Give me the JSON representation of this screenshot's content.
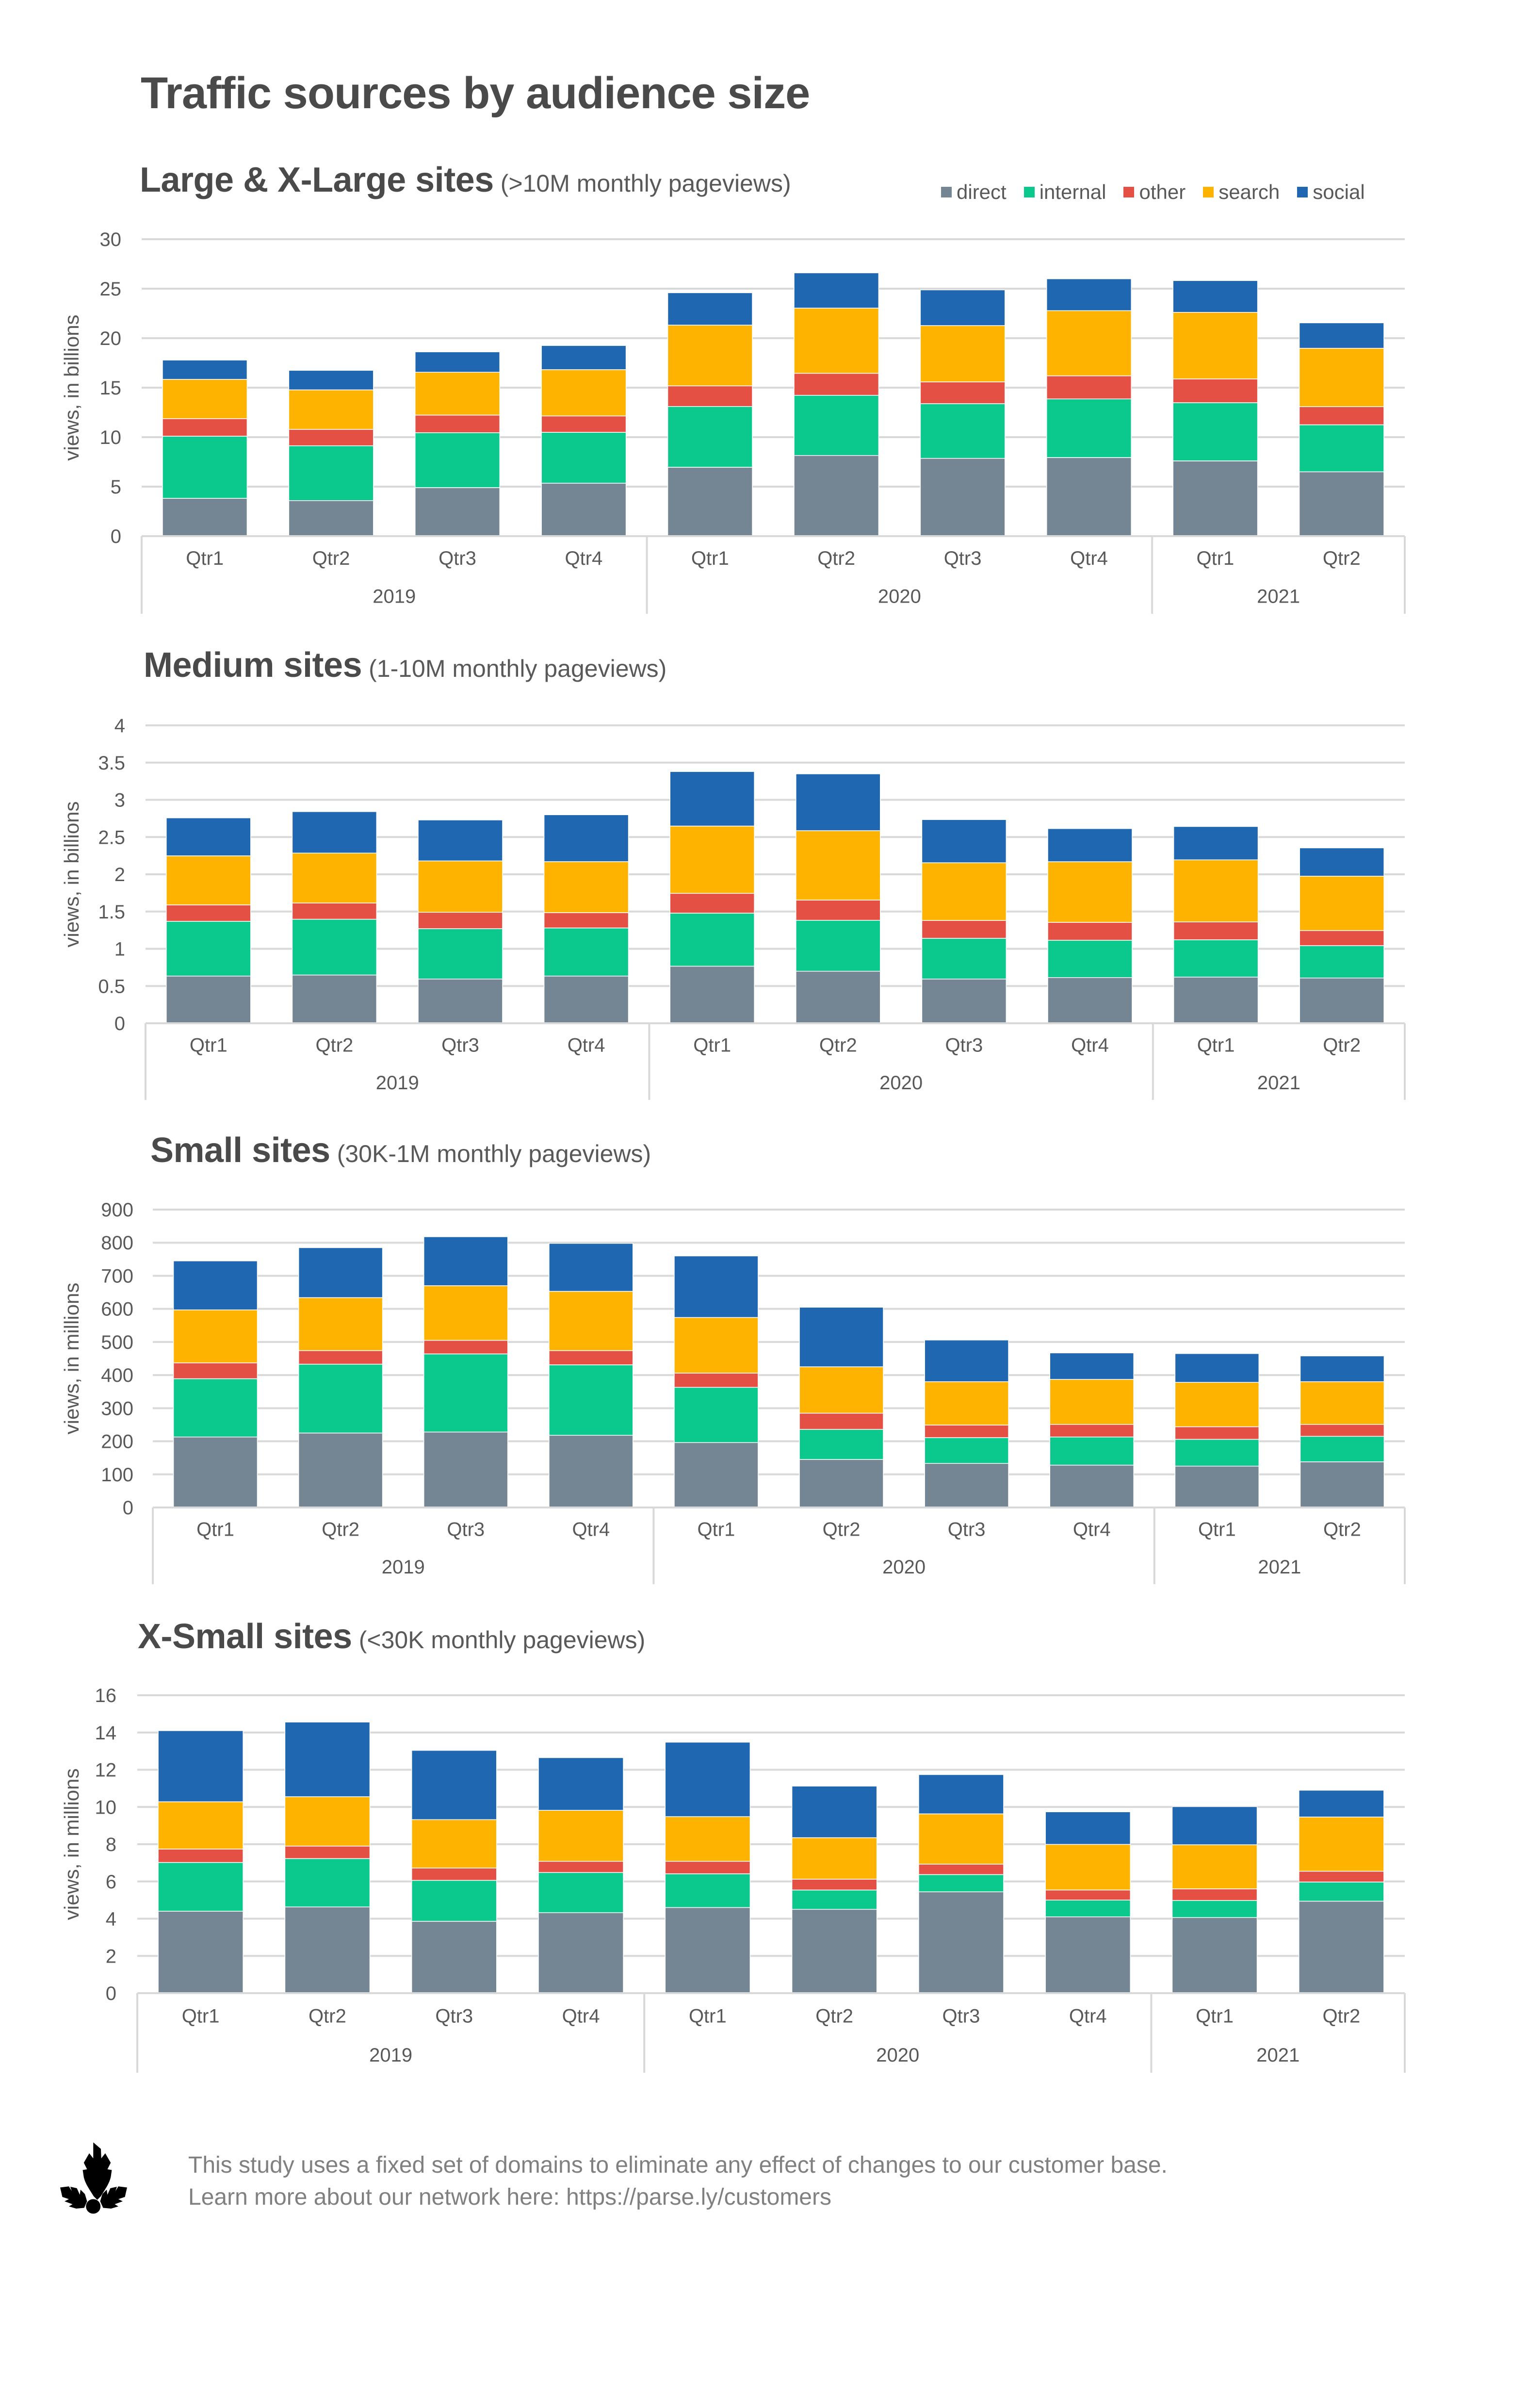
{
  "page": {
    "title": "Traffic sources by audience size"
  },
  "legend": [
    {
      "name": "direct",
      "color": "#748694"
    },
    {
      "name": "internal",
      "color": "#0bc88c"
    },
    {
      "name": "other",
      "color": "#e55045"
    },
    {
      "name": "search",
      "color": "#fdb300"
    },
    {
      "name": "social",
      "color": "#1f67b1"
    }
  ],
  "footer": {
    "logo_icon": "parsely-leaf-icon",
    "line1": "This study uses a fixed set of domains to eliminate any effect of changes to our customer base.",
    "line2": "Learn more about our network here: https://parse.ly/customers"
  },
  "chart_data": [
    {
      "type": "bar",
      "stacked": true,
      "title": "Large & X-Large sites",
      "subtitle": "(>10M monthly pageviews)",
      "ylabel": "views, in billions",
      "xlabel": "",
      "ylim": [
        0,
        30
      ],
      "yticks": [
        0,
        5,
        10,
        15,
        20,
        25,
        30
      ],
      "grid": true,
      "legend": "top-right",
      "categories": [
        "Qtr1",
        "Qtr2",
        "Qtr3",
        "Qtr4",
        "Qtr1",
        "Qtr2",
        "Qtr3",
        "Qtr4",
        "Qtr1",
        "Qtr2"
      ],
      "groups": [
        {
          "label": "2019",
          "count": 4
        },
        {
          "label": "2020",
          "count": 4
        },
        {
          "label": "2021",
          "count": 2
        }
      ],
      "series": [
        {
          "name": "direct",
          "values": [
            3.82,
            3.59,
            4.9,
            5.35,
            6.96,
            8.15,
            7.86,
            7.94,
            7.6,
            6.5
          ]
        },
        {
          "name": "internal",
          "values": [
            6.28,
            5.54,
            5.55,
            5.14,
            6.14,
            6.08,
            5.52,
            5.92,
            5.88,
            4.75
          ]
        },
        {
          "name": "other",
          "values": [
            1.77,
            1.66,
            1.78,
            1.65,
            2.08,
            2.22,
            2.2,
            2.34,
            2.4,
            1.83
          ]
        },
        {
          "name": "search",
          "values": [
            3.97,
            3.99,
            4.33,
            4.68,
            6.14,
            6.59,
            5.69,
            6.58,
            6.73,
            5.9
          ]
        },
        {
          "name": "social",
          "values": [
            1.95,
            1.97,
            2.06,
            2.44,
            3.27,
            3.56,
            3.61,
            3.22,
            3.21,
            2.57
          ]
        }
      ]
    },
    {
      "type": "bar",
      "stacked": true,
      "title": "Medium sites",
      "subtitle": "(1-10M monthly pageviews)",
      "ylabel": "views, in billions",
      "xlabel": "",
      "ylim": [
        0,
        4
      ],
      "yticks": [
        0,
        0.5,
        1,
        1.5,
        2,
        2.5,
        3,
        3.5,
        4
      ],
      "grid": true,
      "categories": [
        "Qtr1",
        "Qtr2",
        "Qtr3",
        "Qtr4",
        "Qtr1",
        "Qtr2",
        "Qtr3",
        "Qtr4",
        "Qtr1",
        "Qtr2"
      ],
      "groups": [
        {
          "label": "2019",
          "count": 4
        },
        {
          "label": "2020",
          "count": 4
        },
        {
          "label": "2021",
          "count": 2
        }
      ],
      "series": [
        {
          "name": "direct",
          "values": [
            0.634,
            0.648,
            0.594,
            0.634,
            0.766,
            0.699,
            0.594,
            0.614,
            0.62,
            0.608
          ]
        },
        {
          "name": "internal",
          "values": [
            0.735,
            0.749,
            0.676,
            0.646,
            0.713,
            0.684,
            0.547,
            0.501,
            0.501,
            0.434
          ]
        },
        {
          "name": "other",
          "values": [
            0.22,
            0.217,
            0.22,
            0.205,
            0.265,
            0.271,
            0.239,
            0.24,
            0.24,
            0.203
          ]
        },
        {
          "name": "search",
          "values": [
            0.659,
            0.671,
            0.69,
            0.685,
            0.904,
            0.932,
            0.775,
            0.814,
            0.833,
            0.73
          ]
        },
        {
          "name": "social",
          "values": [
            0.51,
            0.557,
            0.55,
            0.63,
            0.732,
            0.763,
            0.58,
            0.445,
            0.448,
            0.38
          ]
        }
      ]
    },
    {
      "type": "bar",
      "stacked": true,
      "title": "Small sites",
      "subtitle": "(30K-1M monthly pageviews)",
      "ylabel": "views, in millions",
      "xlabel": "",
      "ylim": [
        0,
        900
      ],
      "yticks": [
        0,
        100,
        200,
        300,
        400,
        500,
        600,
        700,
        800,
        900
      ],
      "grid": true,
      "categories": [
        "Qtr1",
        "Qtr2",
        "Qtr3",
        "Qtr4",
        "Qtr1",
        "Qtr2",
        "Qtr3",
        "Qtr4",
        "Qtr1",
        "Qtr2"
      ],
      "groups": [
        {
          "label": "2019",
          "count": 4
        },
        {
          "label": "2020",
          "count": 4
        },
        {
          "label": "2021",
          "count": 2
        }
      ],
      "series": [
        {
          "name": "direct",
          "values": [
            213,
            225,
            228,
            218,
            196,
            145,
            133,
            128,
            125,
            138
          ]
        },
        {
          "name": "internal",
          "values": [
            176,
            208,
            236,
            213,
            167,
            91,
            78,
            85,
            81,
            77
          ]
        },
        {
          "name": "other",
          "values": [
            48,
            41,
            41,
            43,
            43,
            49,
            38,
            38,
            38,
            36
          ]
        },
        {
          "name": "search",
          "values": [
            160,
            160,
            165,
            179,
            168,
            140,
            131,
            136,
            134,
            129
          ]
        },
        {
          "name": "social",
          "values": [
            148,
            151,
            148,
            145,
            186,
            180,
            126,
            80,
            87,
            78
          ]
        }
      ]
    },
    {
      "type": "bar",
      "stacked": true,
      "title": "X-Small sites",
      "subtitle": "(<30K monthly pageviews)",
      "ylabel": "views, in millions",
      "xlabel": "",
      "ylim": [
        0,
        16
      ],
      "yticks": [
        0,
        2,
        4,
        6,
        8,
        10,
        12,
        14,
        16
      ],
      "grid": true,
      "categories": [
        "Qtr1",
        "Qtr2",
        "Qtr3",
        "Qtr4",
        "Qtr1",
        "Qtr2",
        "Qtr3",
        "Qtr4",
        "Qtr1",
        "Qtr2"
      ],
      "groups": [
        {
          "label": "2019",
          "count": 4
        },
        {
          "label": "2020",
          "count": 4
        },
        {
          "label": "2021",
          "count": 2
        }
      ],
      "series": [
        {
          "name": "direct",
          "values": [
            4.4,
            4.63,
            3.86,
            4.32,
            4.6,
            4.5,
            5.44,
            4.1,
            4.06,
            4.94
          ]
        },
        {
          "name": "internal",
          "values": [
            2.62,
            2.6,
            2.2,
            2.16,
            1.81,
            1.04,
            0.93,
            0.9,
            0.92,
            1.03
          ]
        },
        {
          "name": "other",
          "values": [
            0.72,
            0.67,
            0.66,
            0.6,
            0.67,
            0.58,
            0.56,
            0.54,
            0.62,
            0.58
          ]
        },
        {
          "name": "search",
          "values": [
            2.54,
            2.65,
            2.6,
            2.74,
            2.4,
            2.23,
            2.7,
            2.45,
            2.37,
            2.91
          ]
        },
        {
          "name": "social",
          "values": [
            3.82,
            4.01,
            3.72,
            2.83,
            4.0,
            2.77,
            2.11,
            1.75,
            2.05,
            1.44
          ]
        }
      ]
    }
  ]
}
